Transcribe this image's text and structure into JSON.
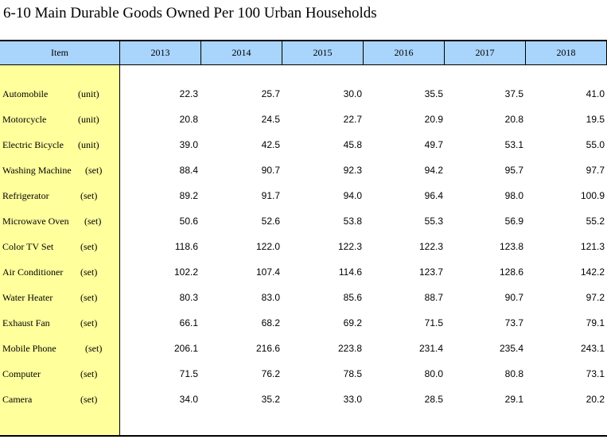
{
  "title": "6-10  Main Durable Goods Owned Per 100 Urban Households",
  "header": {
    "item": "Item",
    "years": [
      "2013",
      "2014",
      "2015",
      "2016",
      "2017",
      "2018"
    ]
  },
  "rows": [
    {
      "item": "Automobile",
      "unit": "(unit)",
      "values": [
        "22.3",
        "25.7",
        "30.0",
        "35.5",
        "37.5",
        "41.0"
      ]
    },
    {
      "item": "Motorcycle",
      "unit": "(unit)",
      "values": [
        "20.8",
        "24.5",
        "22.7",
        "20.9",
        "20.8",
        "19.5"
      ]
    },
    {
      "item": "Electric Bicycle",
      "unit": "(unit)",
      "values": [
        "39.0",
        "42.5",
        "45.8",
        "49.7",
        "53.1",
        "55.0"
      ]
    },
    {
      "item": "Washing Machine",
      "unit": "(set)",
      "values": [
        "88.4",
        "90.7",
        "92.3",
        "94.2",
        "95.7",
        "97.7"
      ]
    },
    {
      "item": "Refrigerator",
      "unit": "(set)",
      "values": [
        "89.2",
        "91.7",
        "94.0",
        "96.4",
        "98.0",
        "100.9"
      ]
    },
    {
      "item": "Microwave Oven",
      "unit": "(set)",
      "values": [
        "50.6",
        "52.6",
        "53.8",
        "55.3",
        "56.9",
        "55.2"
      ]
    },
    {
      "item": "Color TV Set",
      "unit": "(set)",
      "values": [
        "118.6",
        "122.0",
        "122.3",
        "122.3",
        "123.8",
        "121.3"
      ]
    },
    {
      "item": "Air Conditioner",
      "unit": "(set)",
      "values": [
        "102.2",
        "107.4",
        "114.6",
        "123.7",
        "128.6",
        "142.2"
      ]
    },
    {
      "item": "Water Heater",
      "unit": "(set)",
      "values": [
        "80.3",
        "83.0",
        "85.6",
        "88.7",
        "90.7",
        "97.2"
      ]
    },
    {
      "item": "Exhaust Fan",
      "unit": "(set)",
      "values": [
        "66.1",
        "68.2",
        "69.2",
        "71.5",
        "73.7",
        "79.1"
      ]
    },
    {
      "item": "Mobile Phone",
      "unit": "(set)",
      "values": [
        "206.1",
        "216.6",
        "223.8",
        "231.4",
        "235.4",
        "243.1"
      ]
    },
    {
      "item": "Computer",
      "unit": "(set)",
      "values": [
        "71.5",
        "76.2",
        "78.5",
        "80.0",
        "80.8",
        "73.1"
      ]
    },
    {
      "item": "Camera",
      "unit": "(set)",
      "values": [
        "34.0",
        "35.2",
        "33.0",
        "28.5",
        "29.1",
        "20.2"
      ]
    }
  ]
}
